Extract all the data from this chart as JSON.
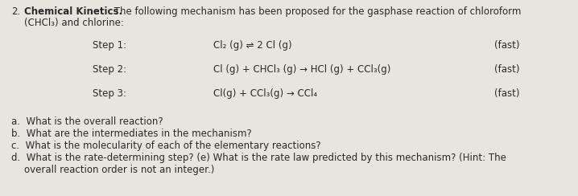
{
  "background_color": "#e8e4de",
  "text_color": "#2a2a2a",
  "font_size": 8.5,
  "title_number": "2.",
  "title_bold": "Chemical Kinetics.",
  "title_regular": " The following mechanism has been proposed for the gasphase reaction of chloroform",
  "title_line2": "(CHCl3) and chlorine:",
  "step1_label": "Step 1:",
  "step1_eq": "Cl₂ (g) ⇌ 2 Cl (g)",
  "step1_note": "(fast)",
  "step2_label": "Step 2:",
  "step2_eq": "Cl (g) + CHCl₃ (g) → HCl (g) + CCl₃(g)",
  "step2_note": "(fast)",
  "step3_label": "Step 3:",
  "step3_eq": "Cl(g) + CCl₃(g) → CCl₄",
  "step3_note": "(fast)",
  "qa": "a.  What is the overall reaction?",
  "qb": "b.  What are the intermediates in the mechanism?",
  "qc": "c.  What is the molecularity of each of the elementary reactions?",
  "qd1": "d.  What is the rate-determining step? (e) What is the rate law predicted by this mechanism? (Hint: The",
  "qd2": "     overall reaction order is not an integer.)"
}
